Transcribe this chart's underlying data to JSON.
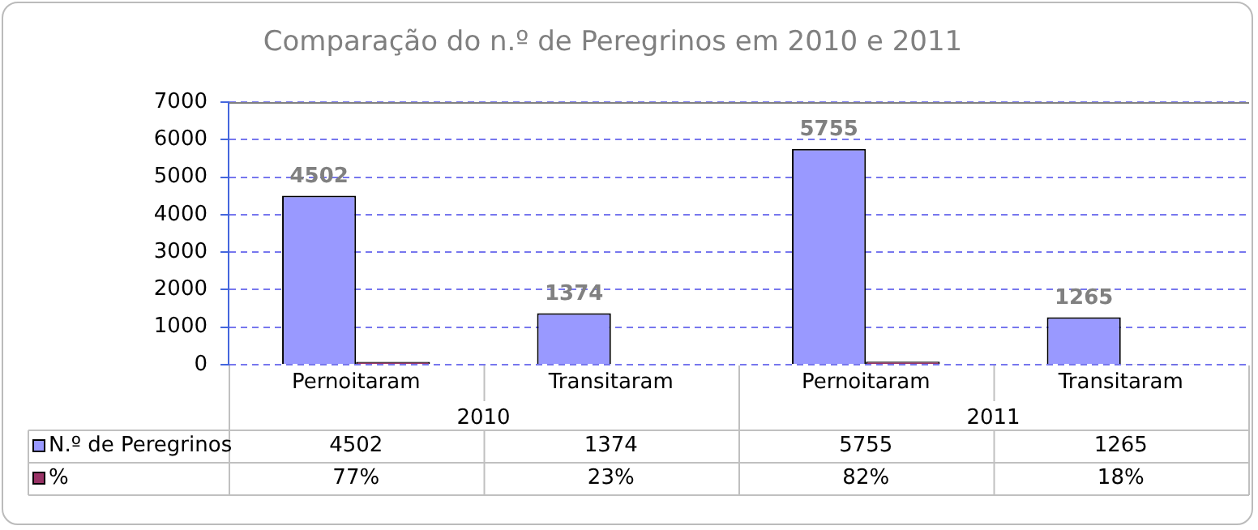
{
  "chart_data": {
    "type": "bar",
    "title": "Comparação do n.º de Peregrinos em 2010 e 2011",
    "categories": [
      "Pernoitaram",
      "Transitaram",
      "Pernoitaram",
      "Transitaram"
    ],
    "series": [
      {
        "name": "N.º de Peregrinos",
        "color": "#9999ff",
        "values": [
          4502,
          1374,
          5755,
          1265
        ],
        "value_labels": [
          "4502",
          "1374",
          "5755",
          "1265"
        ]
      },
      {
        "name": "%",
        "color": "#993366",
        "values": [
          77,
          23,
          82,
          18
        ],
        "value_labels": [
          "77%",
          "23%",
          "82%",
          "18%"
        ]
      }
    ],
    "annotations": [
      "2010",
      "2011"
    ],
    "ylim": [
      0,
      7000
    ],
    "yticks": [
      0,
      1000,
      2000,
      3000,
      4000,
      5000,
      6000,
      7000
    ],
    "grid": "y",
    "legend": "bottom"
  }
}
